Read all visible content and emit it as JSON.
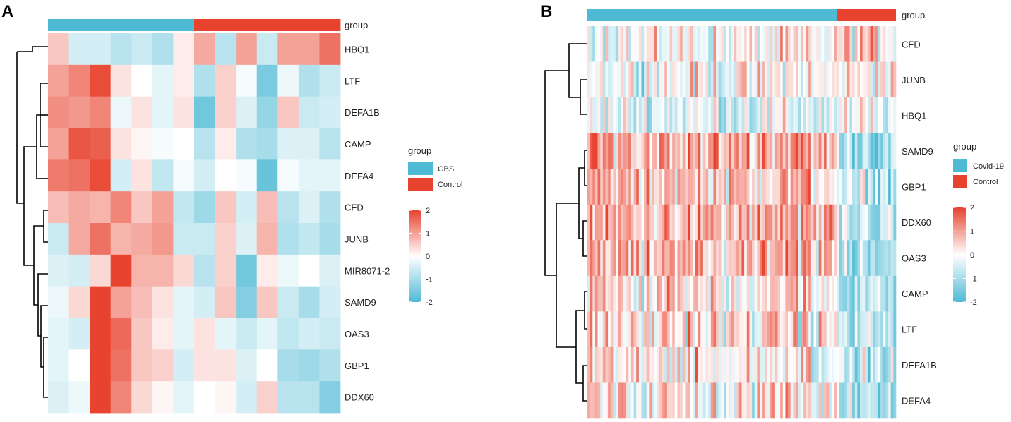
{
  "colors": {
    "low": "#4EBAD4",
    "mid": "#FFFFFF",
    "high": "#E8432F",
    "group_a": "#4EBAD4",
    "group_b": "#E8432F"
  },
  "chart_data": [
    {
      "type": "heatmap",
      "panel": "A",
      "group_annotation_label": "group",
      "legend_title": "group",
      "legend_groups": [
        "GBS",
        "Control"
      ],
      "columns_group": [
        "GBS",
        "GBS",
        "GBS",
        "GBS",
        "GBS",
        "GBS",
        "GBS",
        "Control",
        "Control",
        "Control",
        "Control",
        "Control",
        "Control",
        "Control"
      ],
      "rows": [
        "HBQ1",
        "LTF",
        "DEFA1B",
        "CAMP",
        "DEFA4",
        "CFD",
        "JUNB",
        "MIR8071-2",
        "SAMD9",
        "OAS3",
        "GBP1",
        "DDX60"
      ],
      "values": [
        [
          0.6,
          -0.5,
          -0.5,
          -0.8,
          -0.6,
          -0.9,
          0.2,
          0.9,
          -0.8,
          1.0,
          -0.6,
          1.0,
          1.0,
          1.5
        ],
        [
          1.0,
          1.3,
          1.9,
          0.3,
          0.0,
          -0.3,
          0.2,
          -0.9,
          0.5,
          -0.1,
          -1.5,
          -0.2,
          -0.9,
          -0.6
        ],
        [
          1.2,
          1.1,
          1.3,
          -0.2,
          0.3,
          -0.3,
          0.3,
          -1.6,
          0.5,
          -0.4,
          -1.2,
          0.6,
          -0.6,
          -0.5
        ],
        [
          1.0,
          1.8,
          1.7,
          0.3,
          0.1,
          -0.1,
          0.0,
          -0.8,
          0.2,
          -0.9,
          -1.0,
          -0.4,
          -0.4,
          -0.8
        ],
        [
          1.4,
          1.5,
          1.9,
          -0.5,
          0.3,
          -0.7,
          -0.1,
          -0.5,
          0.0,
          -0.1,
          -1.7,
          -0.1,
          -0.3,
          -0.3
        ],
        [
          0.7,
          0.9,
          0.8,
          1.3,
          0.6,
          1.0,
          -0.7,
          -1.1,
          0.6,
          -0.5,
          0.7,
          -0.8,
          -0.4,
          -0.9
        ],
        [
          -0.6,
          0.9,
          1.5,
          0.8,
          0.9,
          1.1,
          -0.6,
          -0.6,
          0.5,
          -0.4,
          0.8,
          -0.9,
          -0.7,
          -1.0
        ],
        [
          -0.4,
          -0.5,
          0.4,
          2.0,
          0.8,
          0.8,
          0.4,
          -0.8,
          0.5,
          -1.6,
          0.2,
          -0.2,
          0.0,
          -0.4
        ],
        [
          -0.2,
          0.4,
          2.0,
          1.0,
          0.7,
          0.3,
          -0.3,
          -0.5,
          0.6,
          -1.4,
          0.6,
          -0.6,
          -1.0,
          -0.5
        ],
        [
          -0.3,
          -0.5,
          2.0,
          1.6,
          0.6,
          0.2,
          -0.3,
          0.3,
          -0.3,
          -0.6,
          -0.3,
          -0.7,
          -0.5,
          -0.6
        ],
        [
          -0.3,
          0.0,
          2.0,
          1.5,
          0.6,
          0.5,
          -0.5,
          0.3,
          0.3,
          -0.4,
          0.0,
          -1.0,
          -1.1,
          -0.9
        ],
        [
          -0.4,
          -0.2,
          2.0,
          1.3,
          0.4,
          0.1,
          -0.3,
          0.0,
          0.1,
          -0.5,
          0.5,
          -0.8,
          -0.8,
          -1.4
        ]
      ],
      "color_scale": {
        "min": -2,
        "max": 2,
        "ticks": [
          2,
          1,
          0,
          -1,
          -2
        ]
      },
      "ticks_labels": [
        "2",
        "1",
        "0",
        "-1",
        "-2"
      ]
    },
    {
      "type": "heatmap",
      "panel": "B",
      "group_annotation_label": "group",
      "legend_title": "group",
      "legend_groups": [
        "Covid-19",
        "Control"
      ],
      "n_columns": 120,
      "group_split_fraction": 0.81,
      "rows": [
        "CFD",
        "JUNB",
        "HBQ1",
        "SAMD9",
        "GBP1",
        "DDX60",
        "OAS3",
        "CAMP",
        "LTF",
        "DEFA1B",
        "DEFA4"
      ],
      "row_bias_group1": [
        0.0,
        0.0,
        -0.3,
        0.9,
        0.6,
        0.7,
        0.6,
        0.3,
        0.3,
        0.2,
        0.2
      ],
      "row_bias_group2": [
        0.4,
        0.2,
        -0.3,
        -1.0,
        -0.8,
        -0.8,
        -0.8,
        -0.8,
        -0.8,
        -0.8,
        -0.7
      ],
      "color_scale": {
        "min": -2,
        "max": 2,
        "ticks": [
          2,
          1,
          0,
          -1,
          -2
        ]
      },
      "ticks_labels": [
        "2",
        "1",
        "0",
        "-1",
        "-2"
      ]
    }
  ]
}
